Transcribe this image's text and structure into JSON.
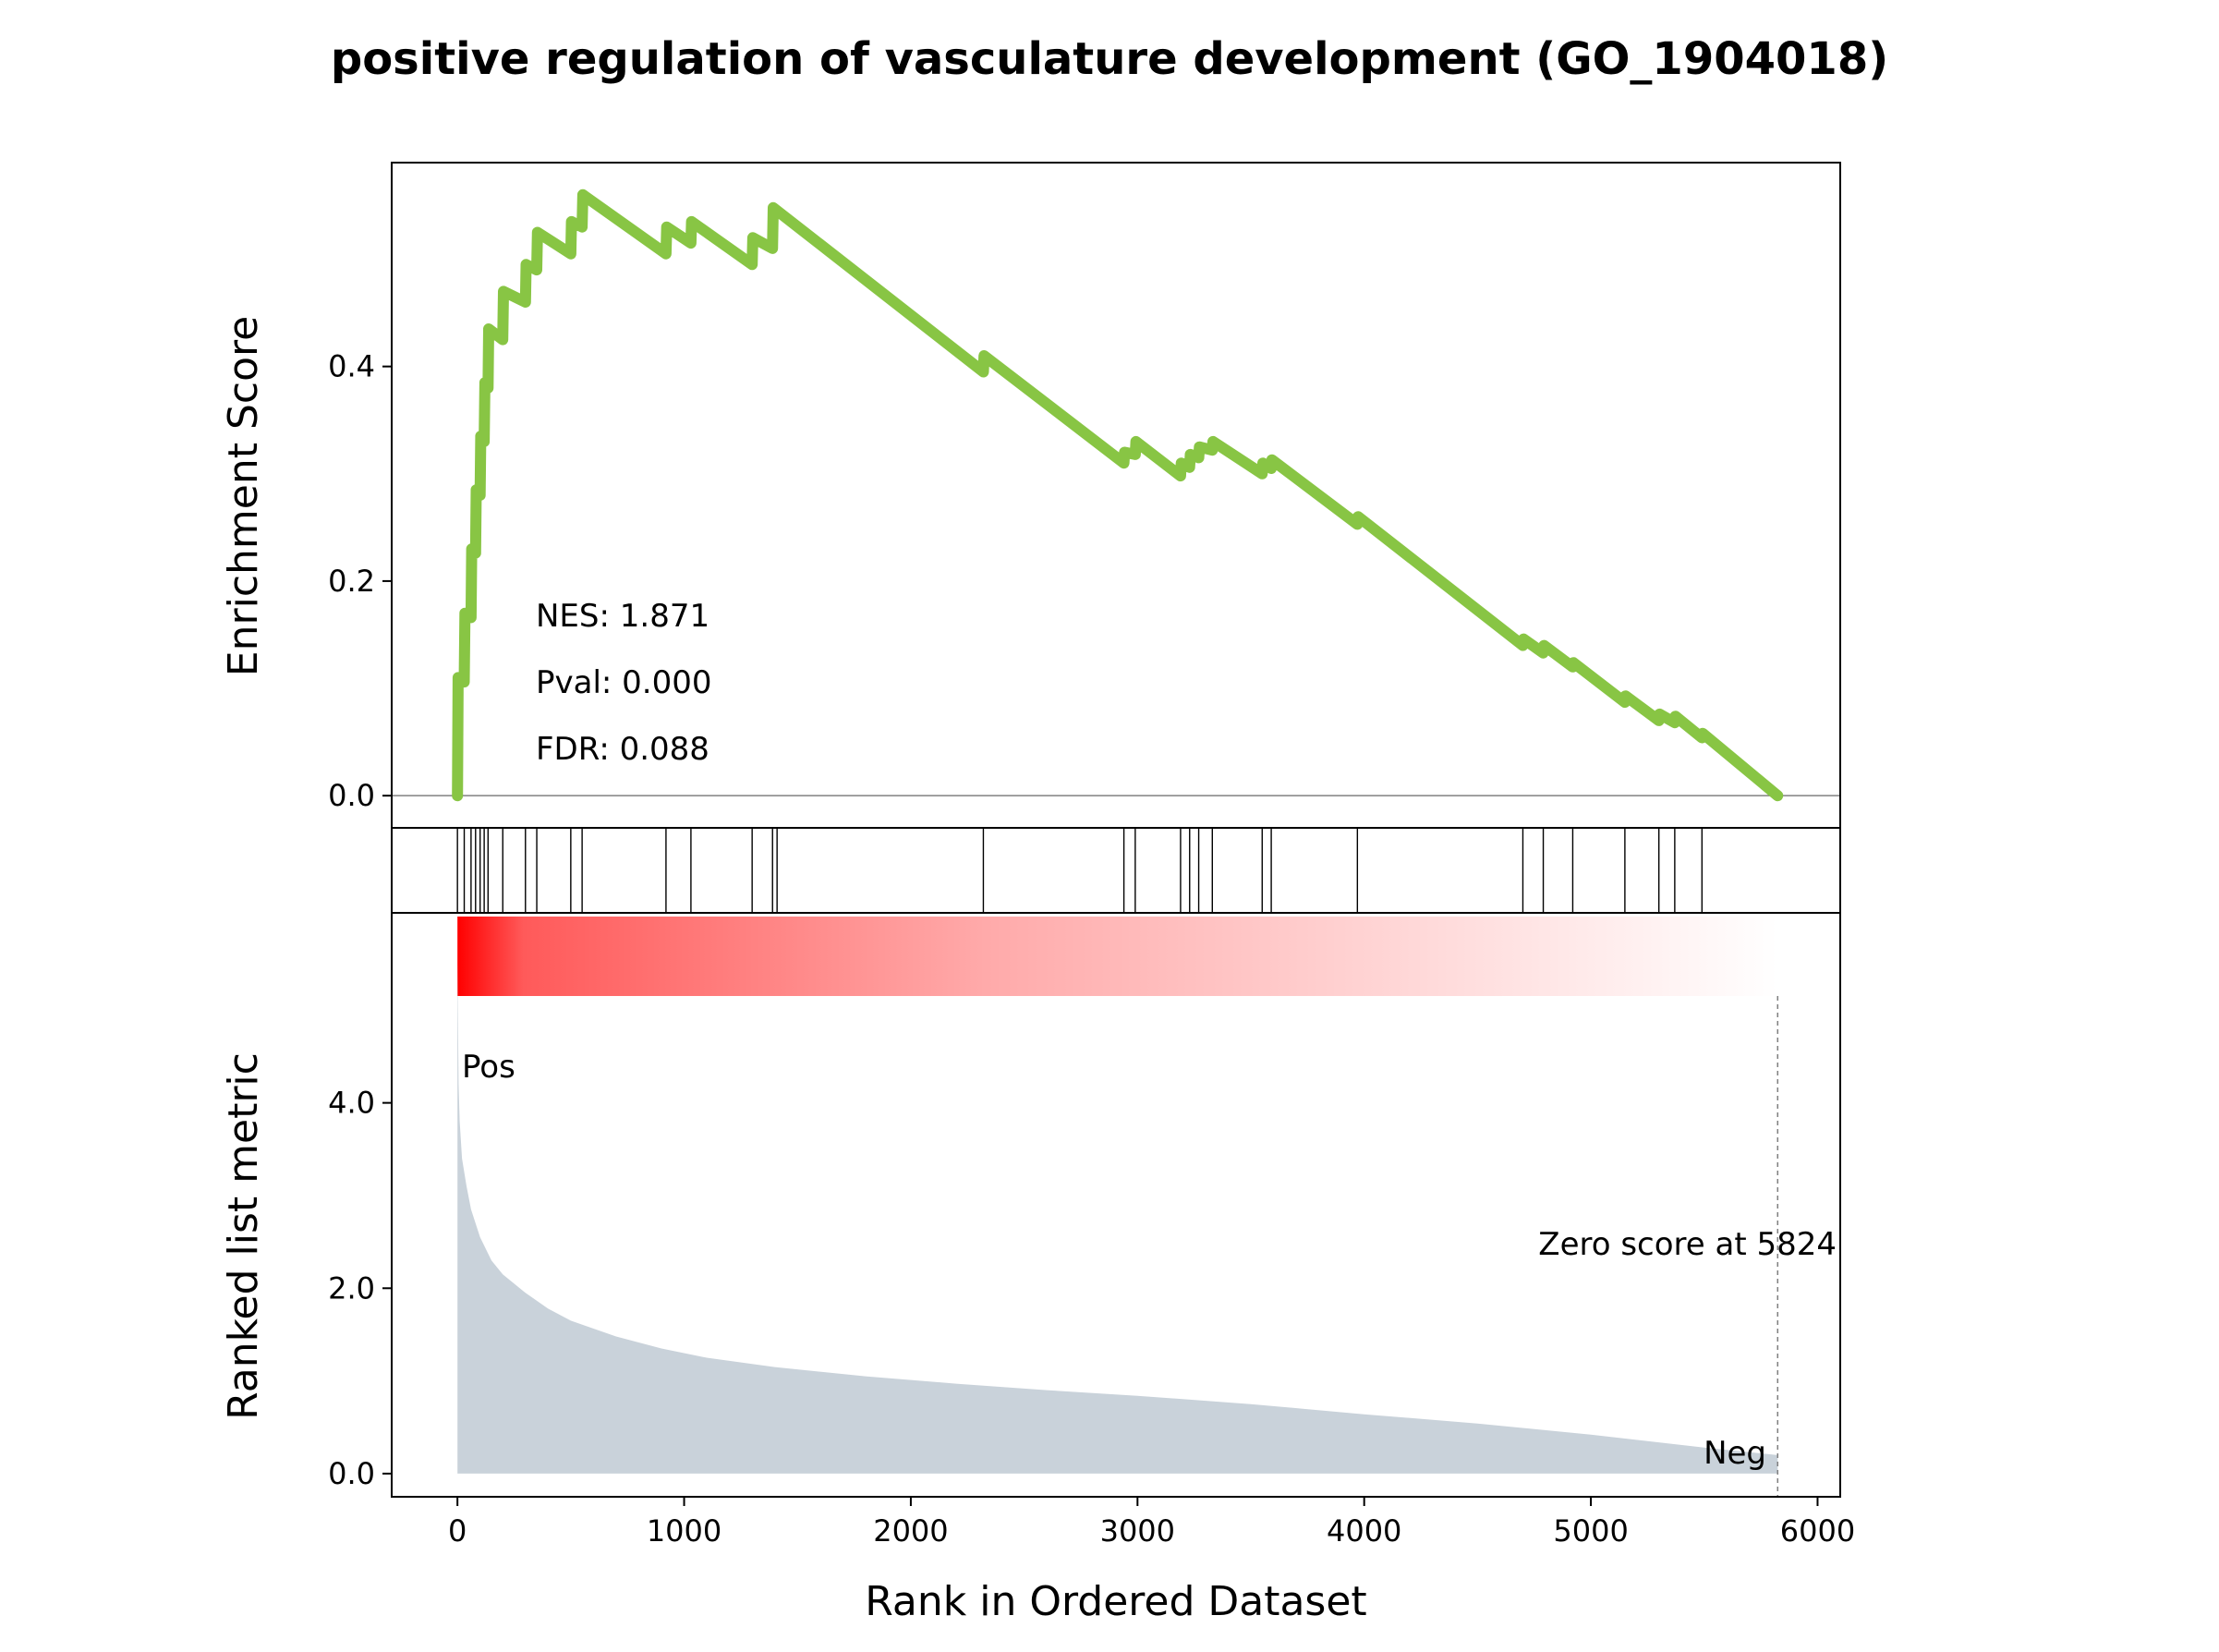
{
  "chart_data": {
    "type": "line",
    "title": "positive regulation of vasculature development (GO_1904018)",
    "xlabel": "Rank in Ordered Dataset",
    "xlim": [
      -290,
      6100
    ],
    "x_ticks": [
      0,
      1000,
      2000,
      3000,
      4000,
      5000,
      6000
    ],
    "x_tick_labels": [
      "0",
      "1000",
      "2000",
      "3000",
      "4000",
      "5000",
      "6000"
    ],
    "enrichment": {
      "ylabel": "Enrichment Score",
      "ylim": [
        -0.03,
        0.59
      ],
      "y_ticks": [
        0.0,
        0.2,
        0.4
      ],
      "y_tick_labels": [
        "0.0",
        "0.2",
        "0.4"
      ],
      "line_color": "#88c544",
      "zero_line": true,
      "points": [
        [
          0,
          0.0
        ],
        [
          3,
          0.11
        ],
        [
          30,
          0.106
        ],
        [
          33,
          0.17
        ],
        [
          60,
          0.166
        ],
        [
          63,
          0.23
        ],
        [
          80,
          0.226
        ],
        [
          83,
          0.285
        ],
        [
          100,
          0.28
        ],
        [
          103,
          0.335
        ],
        [
          118,
          0.33
        ],
        [
          121,
          0.385
        ],
        [
          135,
          0.38
        ],
        [
          138,
          0.435
        ],
        [
          200,
          0.425
        ],
        [
          203,
          0.47
        ],
        [
          300,
          0.46
        ],
        [
          303,
          0.495
        ],
        [
          350,
          0.49
        ],
        [
          353,
          0.525
        ],
        [
          500,
          0.505
        ],
        [
          503,
          0.535
        ],
        [
          550,
          0.53
        ],
        [
          553,
          0.56
        ],
        [
          920,
          0.505
        ],
        [
          923,
          0.53
        ],
        [
          1030,
          0.515
        ],
        [
          1033,
          0.535
        ],
        [
          1300,
          0.495
        ],
        [
          1303,
          0.52
        ],
        [
          1390,
          0.51
        ],
        [
          1393,
          0.548
        ],
        [
          2320,
          0.395
        ],
        [
          2323,
          0.41
        ],
        [
          2940,
          0.31
        ],
        [
          2943,
          0.32
        ],
        [
          2990,
          0.318
        ],
        [
          2993,
          0.33
        ],
        [
          3190,
          0.298
        ],
        [
          3193,
          0.31
        ],
        [
          3230,
          0.306
        ],
        [
          3233,
          0.318
        ],
        [
          3270,
          0.315
        ],
        [
          3273,
          0.325
        ],
        [
          3330,
          0.322
        ],
        [
          3333,
          0.33
        ],
        [
          3550,
          0.3
        ],
        [
          3553,
          0.31
        ],
        [
          3590,
          0.305
        ],
        [
          3593,
          0.313
        ],
        [
          3970,
          0.253
        ],
        [
          3973,
          0.26
        ],
        [
          4700,
          0.14
        ],
        [
          4703,
          0.146
        ],
        [
          4790,
          0.133
        ],
        [
          4793,
          0.14
        ],
        [
          4920,
          0.12
        ],
        [
          4923,
          0.124
        ],
        [
          5150,
          0.087
        ],
        [
          5153,
          0.093
        ],
        [
          5300,
          0.07
        ],
        [
          5303,
          0.076
        ],
        [
          5370,
          0.068
        ],
        [
          5373,
          0.074
        ],
        [
          5490,
          0.054
        ],
        [
          5493,
          0.058
        ],
        [
          5824,
          0.0
        ]
      ],
      "annotations": [
        "NES: 1.871",
        "Pval: 0.000",
        "FDR: 0.088"
      ]
    },
    "hits": [
      0,
      30,
      60,
      80,
      100,
      118,
      135,
      200,
      300,
      350,
      500,
      550,
      920,
      1030,
      1300,
      1390,
      1410,
      2320,
      2940,
      2990,
      3190,
      3230,
      3270,
      3330,
      3550,
      3590,
      3970,
      4700,
      4790,
      4920,
      5150,
      5300,
      5370,
      5490
    ],
    "heatmap": {
      "colormap": "red-to-white",
      "x_range": [
        0,
        5824
      ],
      "color_start": "#ff0000",
      "color_end": "#ffffff"
    },
    "ranked_metric": {
      "ylabel": "Ranked list metric",
      "ylim": [
        -0.25,
        6.05
      ],
      "y_ticks": [
        0.0,
        2.0,
        4.0
      ],
      "y_tick_labels": [
        "0.0",
        "2.0",
        "4.0"
      ],
      "fill_color": "#c9d2da",
      "points": [
        [
          0,
          5.5
        ],
        [
          5,
          4.2
        ],
        [
          10,
          3.8
        ],
        [
          20,
          3.4
        ],
        [
          40,
          3.1
        ],
        [
          60,
          2.85
        ],
        [
          100,
          2.55
        ],
        [
          150,
          2.3
        ],
        [
          200,
          2.15
        ],
        [
          300,
          1.95
        ],
        [
          400,
          1.78
        ],
        [
          500,
          1.65
        ],
        [
          700,
          1.48
        ],
        [
          900,
          1.35
        ],
        [
          1100,
          1.25
        ],
        [
          1400,
          1.15
        ],
        [
          1800,
          1.05
        ],
        [
          2200,
          0.97
        ],
        [
          2600,
          0.9
        ],
        [
          3000,
          0.84
        ],
        [
          3500,
          0.75
        ],
        [
          4000,
          0.64
        ],
        [
          4500,
          0.54
        ],
        [
          5000,
          0.42
        ],
        [
          5500,
          0.28
        ],
        [
          5824,
          0.2
        ]
      ],
      "pos_label": "Pos",
      "neg_label": "Neg",
      "pos_color": "#ff0000",
      "neg_color": "#0000cc",
      "zero_score_text": "Zero score at 5824",
      "zero_score_x": 5824
    }
  }
}
